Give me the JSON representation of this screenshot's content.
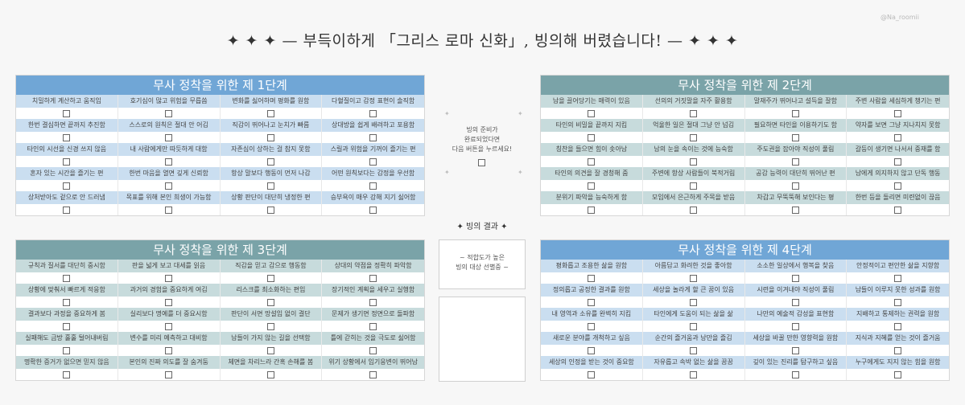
{
  "header": {
    "credit": "@Na_roomii",
    "title": "✦ ✦ ✦ — 부득이하게 「그리스 로마 신화」, 빙의해 버렸습니다!  — ✦ ✦ ✦"
  },
  "panels": [
    {
      "title": "무사 정착을 위한 제 1단계",
      "color": "#70a6d6",
      "items": [
        "치밀하게 계산하고 움직임",
        "호기심이 많고 위험을 무릅씀",
        "변화를 싫어하며 평화를 원함",
        "다혈질이고 감정 표현이 솔직함",
        "한번 결심하면 끝까지 추진함",
        "스스로의 원칙은 절대 안 어김",
        "직감이 뛰어나고 눈치가 빠름",
        "상대방을 쉽게 배려하고 포용함",
        "타인의 시선을 신경 쓰지 않음",
        "내 사람에게만 따듯하게 대함",
        "자존심이 상하는 걸 참지 못함",
        "스릴과 위험을 기꺼이 즐기는 편",
        "혼자 있는 시간을 즐기는 편",
        "한번 마음을 열면 깊게 신뢰함",
        "항상 말보다 행동이 먼저 나감",
        "어떤 원칙보다는 감정을 우선함",
        "상처받아도 겉으로 안 드러냄",
        "목표를 위해 본인 희생이 가능함",
        "상황 판단이 대단히 냉정한 편",
        "승부욕이 매우 강해 지기 싫어함"
      ]
    },
    {
      "title": "무사 정착을 위한 제 2단계",
      "color": "#7aa3a8",
      "items": [
        "남을 끌어당기는 매력이 있음",
        "선의의 거짓말을 자주 활용함",
        "말재주가 뛰어나고 설득을 잘함",
        "주변 사람을 세심하게 챙기는 편",
        "타인의 비밀을 끝까지 지킴",
        "억울한 일은 절대 그냥 안 넘김",
        "필요하면 타인을 이용하기도 함",
        "약자를 보면 그냥 지나치지 못함",
        "칭찬을 들으면 힘이 솟아남",
        "남의 눈을 속이는 것에 능숙함",
        "주도권을 잡아야 직성이 풀림",
        "갈등이 생기면 나서서 중재를 함",
        "타인의 의견을 잘 경청해 줌",
        "주변에 항상 사람들이 북적거림",
        "공감 능력이 대단히 뛰어난 편",
        "남에게 의지하지 않고 단독 행동",
        "분위기 파악을 능숙하게 함",
        "모임에서 은근하게 주목을 받음",
        "차갑고 무뚝뚝해 보인다는 평",
        "한번 등을 돌리면 미련없이 끊음"
      ]
    },
    {
      "title": "무사 정착을 위한 제 3단계",
      "color": "#7aa3a8",
      "items": [
        "규칙과 질서를 대단히 중시함",
        "판을 넓게 보고 대세를 읽음",
        "직감을 믿고 감으로 행동함",
        "상대의 약점을 정확히 파악함",
        "상황에 맞춰서 빠르게 적응함",
        "과거의 경험을 중요하게 여김",
        "리스크를 최소화하는 편임",
        "장기적인 계획을 세우고 실행함",
        "결과보다 과정을 중요하게 봄",
        "실리보다 명예를 더 중요시함",
        "판단이 서면 망설임 없이 결단",
        "문제가 생기면 정면으로 돌파함",
        "실패해도 금방 훌훌 털어내버림",
        "변수를 미리 예측하고 대비함",
        "남들이 가지 않는 길을 선택함",
        "틀에 갇히는 것을 극도로 싫어함",
        "명확한 증거가 없으면 믿지 않음",
        "본인의 진짜 의도를 잘 숨겨둠",
        "체면을 차리느라 간혹 손해를 봄",
        "위기 상황에서 임기응변이 뛰어남"
      ]
    },
    {
      "title": "무사 정착을 위한 제 4단계",
      "color": "#70a6d6",
      "items": [
        "평화롭고 조용한 삶을 원함",
        "아름답고 화려한 것을 좋아함",
        "소소한 일상에서 행복을 찾음",
        "안정적이고 편안한 삶을 지향함",
        "정의롭고 공정한 결과를 원함",
        "세상을 놀라게 할 큰 꿈이 있음",
        "시련을 이겨내야 직성이 풀림",
        "남들이 이루지 못한 성과를 원함",
        "내 영역과 소유를 완벽히 지킴",
        "타인에게 도움이 되는 삶을 삶",
        "나만의 예술적 감성을 표현함",
        "지배하고 통제하는 권력을 원함",
        "새로운 분야를 개척하고 싶음",
        "순간의 즐거움과 낭만을 즐김",
        "세상을 바꿀 만한 영향력을 원함",
        "지식과 지혜를 얻는 것이 즐거움",
        "세상의 인정을 받는 것이 중요함",
        "자유롭고 속박 없는 삶을 꿈꿈",
        "깊이 있는 진리를 탐구하고 싶음",
        "누구에게도 지지 않는 힘을 원함"
      ]
    }
  ],
  "middle": {
    "ready_text": [
      "빙의 준비가",
      "완료되었다면",
      "다음 버튼을 누르세요!"
    ],
    "result_title": "✦ 빙의 결과 ✦",
    "result_text": [
      "~ 적합도가 높은",
      "빙의 대상 선별중 ~"
    ],
    "decor": "✦"
  }
}
